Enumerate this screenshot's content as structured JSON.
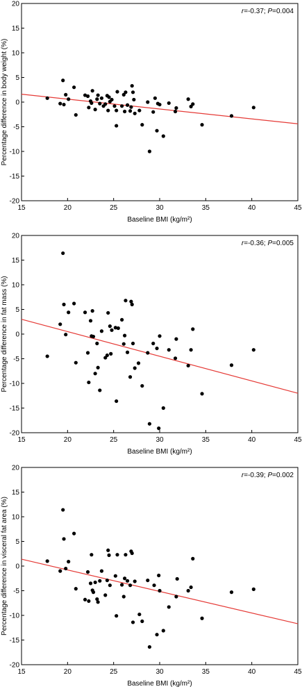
{
  "chart_data": [
    {
      "type": "scatter",
      "xlabel": "Baseline BMI (kg/m²)",
      "ylabel": "Percentage difference in body weight (%)",
      "xlim": [
        15,
        45
      ],
      "ylim": [
        -20,
        20
      ],
      "xticks": [
        "15",
        "20",
        "25",
        "30",
        "35",
        "40",
        "45"
      ],
      "yticks": [
        "20",
        "15",
        "10",
        "5",
        "0",
        "-5",
        "-10",
        "-15",
        "-20"
      ],
      "annotation": {
        "r_label": "r",
        "r_value": "=-0.37; ",
        "p_label": "P",
        "p_value": "=0.004"
      },
      "regression": {
        "x": [
          15,
          45
        ],
        "y": [
          1.6,
          -4.4
        ],
        "color": "#e53935"
      },
      "points": [
        [
          17.8,
          0.8
        ],
        [
          19.2,
          -0.3
        ],
        [
          19.5,
          4.4
        ],
        [
          19.6,
          -0.5
        ],
        [
          19.8,
          1.5
        ],
        [
          20.1,
          0.6
        ],
        [
          20.7,
          3.0
        ],
        [
          20.9,
          -2.6
        ],
        [
          21.9,
          1.4
        ],
        [
          22.2,
          1.2
        ],
        [
          22.3,
          -1.1
        ],
        [
          22.5,
          0.2
        ],
        [
          22.6,
          -0.2
        ],
        [
          22.7,
          2.3
        ],
        [
          23.0,
          -1.5
        ],
        [
          23.2,
          0.6
        ],
        [
          23.3,
          1.4
        ],
        [
          23.5,
          -0.3
        ],
        [
          23.7,
          0.8
        ],
        [
          23.9,
          -0.8
        ],
        [
          24.1,
          -0.4
        ],
        [
          24.3,
          1.3
        ],
        [
          24.4,
          -1.7
        ],
        [
          24.5,
          1.0
        ],
        [
          24.6,
          0.1
        ],
        [
          24.8,
          0.5
        ],
        [
          25.1,
          -0.8
        ],
        [
          25.3,
          -1.7
        ],
        [
          25.3,
          -4.8
        ],
        [
          25.4,
          2.1
        ],
        [
          25.9,
          -0.8
        ],
        [
          26.1,
          1.5
        ],
        [
          26.2,
          -1.9
        ],
        [
          26.3,
          2.0
        ],
        [
          26.5,
          -0.6
        ],
        [
          26.8,
          -1.8
        ],
        [
          26.9,
          -1.0
        ],
        [
          27.0,
          3.3
        ],
        [
          27.1,
          2.0
        ],
        [
          27.2,
          0.5
        ],
        [
          27.3,
          -2.3
        ],
        [
          27.8,
          -1.7
        ],
        [
          28.1,
          -4.6
        ],
        [
          28.7,
          0.0
        ],
        [
          28.9,
          -10.0
        ],
        [
          29.3,
          -2.0
        ],
        [
          29.5,
          0.8
        ],
        [
          29.7,
          -5.8
        ],
        [
          29.8,
          -0.3
        ],
        [
          30.0,
          -0.5
        ],
        [
          30.4,
          -6.9
        ],
        [
          31.0,
          -0.2
        ],
        [
          31.8,
          -1.2
        ],
        [
          31.7,
          -1.9
        ],
        [
          33.1,
          0.6
        ],
        [
          33.4,
          -0.9
        ],
        [
          33.6,
          -0.4
        ],
        [
          34.6,
          -4.6
        ],
        [
          37.8,
          -2.8
        ],
        [
          40.2,
          -1.1
        ]
      ]
    },
    {
      "type": "scatter",
      "xlabel": "Baseline BMI (kg/m²)",
      "ylabel": "Percentage difference in fat mass (%)",
      "xlim": [
        15,
        45
      ],
      "ylim": [
        -20,
        20
      ],
      "xticks": [
        "15",
        "20",
        "25",
        "30",
        "35",
        "40",
        "45"
      ],
      "yticks": [
        "20",
        "15",
        "10",
        "5",
        "0",
        "-5",
        "-10",
        "-15",
        "-20"
      ],
      "annotation": {
        "r_label": "r",
        "r_value": "=-0.36; ",
        "p_label": "P",
        "p_value": "=0.005"
      },
      "regression": {
        "x": [
          15,
          45
        ],
        "y": [
          3.0,
          -12.0
        ],
        "color": "#e53935"
      },
      "points": [
        [
          17.8,
          -4.5
        ],
        [
          19.2,
          2.0
        ],
        [
          19.5,
          16.4
        ],
        [
          19.6,
          6.0
        ],
        [
          19.8,
          -0.1
        ],
        [
          20.1,
          4.4
        ],
        [
          20.7,
          6.2
        ],
        [
          20.9,
          -5.8
        ],
        [
          21.9,
          4.4
        ],
        [
          22.2,
          -3.8
        ],
        [
          22.3,
          -9.8
        ],
        [
          22.5,
          2.7
        ],
        [
          22.6,
          -0.4
        ],
        [
          22.7,
          4.7
        ],
        [
          22.8,
          -0.5
        ],
        [
          23.0,
          -8.0
        ],
        [
          23.2,
          -1.9
        ],
        [
          23.3,
          -6.8
        ],
        [
          23.5,
          -11.4
        ],
        [
          23.7,
          0.6
        ],
        [
          24.1,
          -4.8
        ],
        [
          24.3,
          -4.3
        ],
        [
          24.4,
          4.3
        ],
        [
          24.6,
          1.6
        ],
        [
          24.7,
          -4.0
        ],
        [
          24.8,
          0.8
        ],
        [
          25.2,
          1.3
        ],
        [
          25.3,
          -13.6
        ],
        [
          25.5,
          1.2
        ],
        [
          25.9,
          2.9
        ],
        [
          26.1,
          -2.0
        ],
        [
          26.2,
          -0.3
        ],
        [
          26.3,
          6.8
        ],
        [
          26.5,
          -3.7
        ],
        [
          26.8,
          -8.7
        ],
        [
          26.9,
          6.6
        ],
        [
          27.0,
          6.0
        ],
        [
          27.1,
          -1.9
        ],
        [
          27.3,
          -6.9
        ],
        [
          27.7,
          -5.9
        ],
        [
          28.1,
          -10.5
        ],
        [
          28.7,
          -3.8
        ],
        [
          28.9,
          -18.2
        ],
        [
          29.3,
          -1.9
        ],
        [
          29.7,
          -2.9
        ],
        [
          29.9,
          -19.1
        ],
        [
          30.0,
          -0.4
        ],
        [
          30.4,
          -15.0
        ],
        [
          31.0,
          -3.2
        ],
        [
          31.7,
          -4.9
        ],
        [
          31.8,
          -1.0
        ],
        [
          33.1,
          -6.4
        ],
        [
          33.4,
          -3.2
        ],
        [
          33.6,
          1.0
        ],
        [
          34.6,
          -12.1
        ],
        [
          37.8,
          -6.3
        ],
        [
          40.2,
          -3.2
        ]
      ]
    },
    {
      "type": "scatter",
      "xlabel": "Baseline BMI (kg/m²)",
      "ylabel": "Percentage difference in visceral fat area (%)",
      "xlim": [
        15,
        45
      ],
      "ylim": [
        -20,
        20
      ],
      "xticks": [
        "15",
        "20",
        "25",
        "30",
        "35",
        "40",
        "45"
      ],
      "yticks": [
        "20",
        "15",
        "10",
        "5",
        "0",
        "-5",
        "-10",
        "-15",
        "-20"
      ],
      "annotation": {
        "r_label": "r",
        "r_value": "=-0.39; ",
        "p_label": "P",
        "p_value": "=0.002"
      },
      "regression": {
        "x": [
          15,
          45
        ],
        "y": [
          1.4,
          -11.7
        ],
        "color": "#e53935"
      },
      "points": [
        [
          17.8,
          1.0
        ],
        [
          19.2,
          -1.0
        ],
        [
          19.5,
          11.4
        ],
        [
          19.6,
          5.5
        ],
        [
          19.8,
          -0.5
        ],
        [
          20.1,
          0.9
        ],
        [
          20.7,
          6.6
        ],
        [
          20.9,
          -4.6
        ],
        [
          21.9,
          -6.8
        ],
        [
          22.2,
          -1.2
        ],
        [
          22.3,
          -7.1
        ],
        [
          22.5,
          -3.5
        ],
        [
          22.6,
          2.3
        ],
        [
          22.7,
          -4.9
        ],
        [
          22.8,
          -5.3
        ],
        [
          23.0,
          -3.3
        ],
        [
          23.2,
          -6.7
        ],
        [
          23.3,
          -7.3
        ],
        [
          23.5,
          -3.0
        ],
        [
          23.7,
          -1.0
        ],
        [
          24.1,
          -5.9
        ],
        [
          24.3,
          -2.9
        ],
        [
          24.4,
          3.2
        ],
        [
          24.5,
          2.2
        ],
        [
          24.6,
          -3.9
        ],
        [
          25.2,
          -2.0
        ],
        [
          25.3,
          -10.1
        ],
        [
          25.4,
          2.3
        ],
        [
          25.9,
          -3.8
        ],
        [
          26.1,
          -6.2
        ],
        [
          26.2,
          -2.5
        ],
        [
          26.3,
          2.3
        ],
        [
          26.5,
          -3.0
        ],
        [
          26.8,
          -3.9
        ],
        [
          26.9,
          3.0
        ],
        [
          27.0,
          2.6
        ],
        [
          27.1,
          -11.4
        ],
        [
          27.3,
          -3.1
        ],
        [
          27.8,
          -9.8
        ],
        [
          28.1,
          -11.2
        ],
        [
          28.7,
          -2.9
        ],
        [
          28.9,
          -16.4
        ],
        [
          29.4,
          -3.9
        ],
        [
          29.7,
          -13.9
        ],
        [
          29.9,
          -1.9
        ],
        [
          30.0,
          -5.0
        ],
        [
          30.4,
          -13.1
        ],
        [
          31.0,
          -8.3
        ],
        [
          31.8,
          -6.2
        ],
        [
          31.9,
          -2.6
        ],
        [
          33.1,
          -5.0
        ],
        [
          33.4,
          -4.3
        ],
        [
          33.6,
          1.5
        ],
        [
          34.6,
          -10.6
        ],
        [
          37.8,
          -5.3
        ],
        [
          40.2,
          -4.7
        ]
      ]
    }
  ]
}
